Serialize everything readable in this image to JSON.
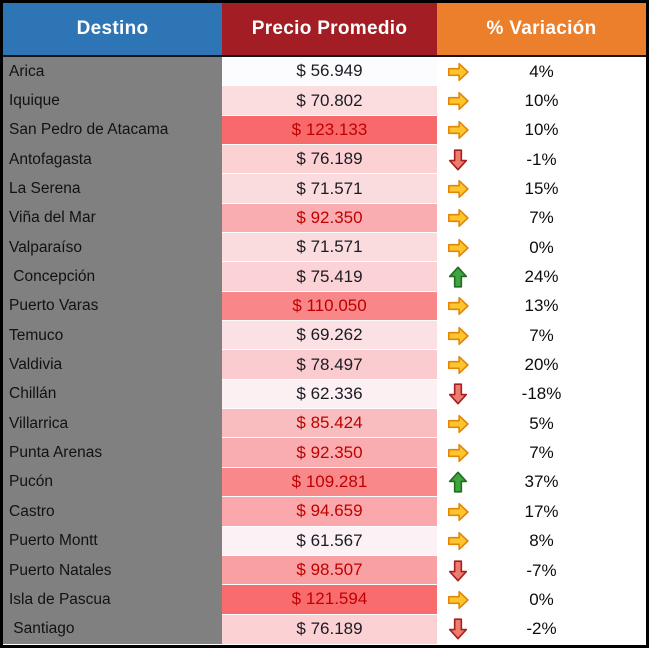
{
  "table": {
    "header": {
      "destino": {
        "label": "Destino",
        "bg": "#2E75B6"
      },
      "precio": {
        "label": "Precio Promedio",
        "bg": "#A21E24"
      },
      "variacion": {
        "label": "% Variación",
        "bg": "#EC7F2B"
      }
    },
    "rows": [
      {
        "destino": "Arica",
        "precio": "$ 56.949",
        "precio_bg": "#FCFCFF",
        "precio_red_text": false,
        "icon": "arrow-right",
        "variacion": "4%"
      },
      {
        "destino": "Iquique",
        "precio": "$ 70.802",
        "precio_bg": "#FBDDE0",
        "precio_red_text": false,
        "icon": "arrow-right",
        "variacion": "10%"
      },
      {
        "destino": "San Pedro de Atacama",
        "precio": "$ 123.133",
        "precio_bg": "#F8696B",
        "precio_red_text": true,
        "icon": "arrow-right",
        "variacion": "10%"
      },
      {
        "destino": "Antofagasta",
        "precio": "$ 76.189",
        "precio_bg": "#FBD1D4",
        "precio_red_text": false,
        "icon": "arrow-down",
        "variacion": "-1%"
      },
      {
        "destino": "La Serena",
        "precio": "$ 71.571",
        "precio_bg": "#FBDCDE",
        "precio_red_text": false,
        "icon": "arrow-right",
        "variacion": "15%"
      },
      {
        "destino": "Viña del Mar",
        "precio": "$ 92.350",
        "precio_bg": "#FAADB0",
        "precio_red_text": true,
        "icon": "arrow-right",
        "variacion": "7%"
      },
      {
        "destino": "Valparaíso",
        "precio": "$ 71.571",
        "precio_bg": "#FBDCDE",
        "precio_red_text": false,
        "icon": "arrow-right",
        "variacion": "0%"
      },
      {
        "destino": " Concepción",
        "precio": "$ 75.419",
        "precio_bg": "#FBD3D6",
        "precio_red_text": false,
        "icon": "arrow-up",
        "variacion": "24%"
      },
      {
        "destino": "Puerto Varas",
        "precio": "$ 110.050",
        "precio_bg": "#F98688",
        "precio_red_text": true,
        "icon": "arrow-right",
        "variacion": "13%"
      },
      {
        "destino": "Temuco",
        "precio": "$ 69.262",
        "precio_bg": "#FBE1E3",
        "precio_red_text": false,
        "icon": "arrow-right",
        "variacion": "7%"
      },
      {
        "destino": "Valdivia",
        "precio": "$ 78.497",
        "precio_bg": "#FBCCCF",
        "precio_red_text": false,
        "icon": "arrow-right",
        "variacion": "20%"
      },
      {
        "destino": "Chillán",
        "precio": "$ 62.336",
        "precio_bg": "#FCF0F3",
        "precio_red_text": false,
        "icon": "arrow-down",
        "variacion": "-18%"
      },
      {
        "destino": "Villarrica",
        "precio": "$ 85.424",
        "precio_bg": "#FABDBF",
        "precio_red_text": true,
        "icon": "arrow-right",
        "variacion": "5%"
      },
      {
        "destino": "Punta Arenas",
        "precio": "$ 92.350",
        "precio_bg": "#FAADB0",
        "precio_red_text": true,
        "icon": "arrow-right",
        "variacion": "7%"
      },
      {
        "destino": "Pucón",
        "precio": "$ 109.281",
        "precio_bg": "#F9888A",
        "precio_red_text": true,
        "icon": "arrow-up",
        "variacion": "37%"
      },
      {
        "destino": "Castro",
        "precio": "$ 94.659",
        "precio_bg": "#FAA8AB",
        "precio_red_text": true,
        "icon": "arrow-right",
        "variacion": "17%"
      },
      {
        "destino": "Puerto Montt",
        "precio": "$ 61.567",
        "precio_bg": "#FCF2F5",
        "precio_red_text": false,
        "icon": "arrow-right",
        "variacion": "8%"
      },
      {
        "destino": "Puerto Natales",
        "precio": "$ 98.507",
        "precio_bg": "#F9A0A2",
        "precio_red_text": true,
        "icon": "arrow-down",
        "variacion": "-7%"
      },
      {
        "destino": "Isla de Pascua",
        "precio": "$ 121.594",
        "precio_bg": "#F86C6E",
        "precio_red_text": true,
        "icon": "arrow-right",
        "variacion": "0%"
      },
      {
        "destino": " Santiago",
        "precio": "$ 76.189",
        "precio_bg": "#FBD1D4",
        "precio_red_text": false,
        "icon": "arrow-down",
        "variacion": "-2%"
      }
    ]
  },
  "colors": {
    "header_destino_bg": "#2E75B6",
    "header_precio_bg": "#A21E24",
    "header_variacion_bg": "#EC7F2B",
    "destino_column_bg": "#808080",
    "price_text_normal": "#1B1B24",
    "price_text_above_avg": "#C00000",
    "arrow_right_fill": "#FFC42E",
    "arrow_right_stroke": "#E0870B",
    "arrow_down_fill": "#EC7C6C",
    "arrow_down_stroke": "#A42024",
    "arrow_up_fill": "#3FA63F",
    "arrow_up_stroke": "#226B22",
    "outer_border": "#000000"
  },
  "chart_data": {
    "type": "table",
    "title": "",
    "columns": [
      "Destino",
      "Precio Promedio",
      "% Variación"
    ],
    "rows": [
      {
        "destino": "Arica",
        "precio_promedio": 56949,
        "variacion_pct": 4,
        "trend": "flat"
      },
      {
        "destino": "Iquique",
        "precio_promedio": 70802,
        "variacion_pct": 10,
        "trend": "flat"
      },
      {
        "destino": "San Pedro de Atacama",
        "precio_promedio": 123133,
        "variacion_pct": 10,
        "trend": "flat"
      },
      {
        "destino": "Antofagasta",
        "precio_promedio": 76189,
        "variacion_pct": -1,
        "trend": "down"
      },
      {
        "destino": "La Serena",
        "precio_promedio": 71571,
        "variacion_pct": 15,
        "trend": "flat"
      },
      {
        "destino": "Viña del Mar",
        "precio_promedio": 92350,
        "variacion_pct": 7,
        "trend": "flat"
      },
      {
        "destino": "Valparaíso",
        "precio_promedio": 71571,
        "variacion_pct": 0,
        "trend": "flat"
      },
      {
        "destino": "Concepción",
        "precio_promedio": 75419,
        "variacion_pct": 24,
        "trend": "up"
      },
      {
        "destino": "Puerto Varas",
        "precio_promedio": 110050,
        "variacion_pct": 13,
        "trend": "flat"
      },
      {
        "destino": "Temuco",
        "precio_promedio": 69262,
        "variacion_pct": 7,
        "trend": "flat"
      },
      {
        "destino": "Valdivia",
        "precio_promedio": 78497,
        "variacion_pct": 20,
        "trend": "flat"
      },
      {
        "destino": "Chillán",
        "precio_promedio": 62336,
        "variacion_pct": -18,
        "trend": "down"
      },
      {
        "destino": "Villarrica",
        "precio_promedio": 85424,
        "variacion_pct": 5,
        "trend": "flat"
      },
      {
        "destino": "Punta Arenas",
        "precio_promedio": 92350,
        "variacion_pct": 7,
        "trend": "flat"
      },
      {
        "destino": "Pucón",
        "precio_promedio": 109281,
        "variacion_pct": 37,
        "trend": "up"
      },
      {
        "destino": "Castro",
        "precio_promedio": 94659,
        "variacion_pct": 17,
        "trend": "flat"
      },
      {
        "destino": "Puerto Montt",
        "precio_promedio": 61567,
        "variacion_pct": 8,
        "trend": "flat"
      },
      {
        "destino": "Puerto Natales",
        "precio_promedio": 98507,
        "variacion_pct": -7,
        "trend": "down"
      },
      {
        "destino": "Isla de Pascua",
        "precio_promedio": 121594,
        "variacion_pct": 0,
        "trend": "flat"
      },
      {
        "destino": "Santiago",
        "precio_promedio": 76189,
        "variacion_pct": -2,
        "trend": "down"
      }
    ],
    "notes": "Price column uses a white-to-red color scale (min 56949, max 123133); prices above the average (84885) are shown in dark red text; icon set: green up arrow, yellow right arrow, red down arrow."
  }
}
